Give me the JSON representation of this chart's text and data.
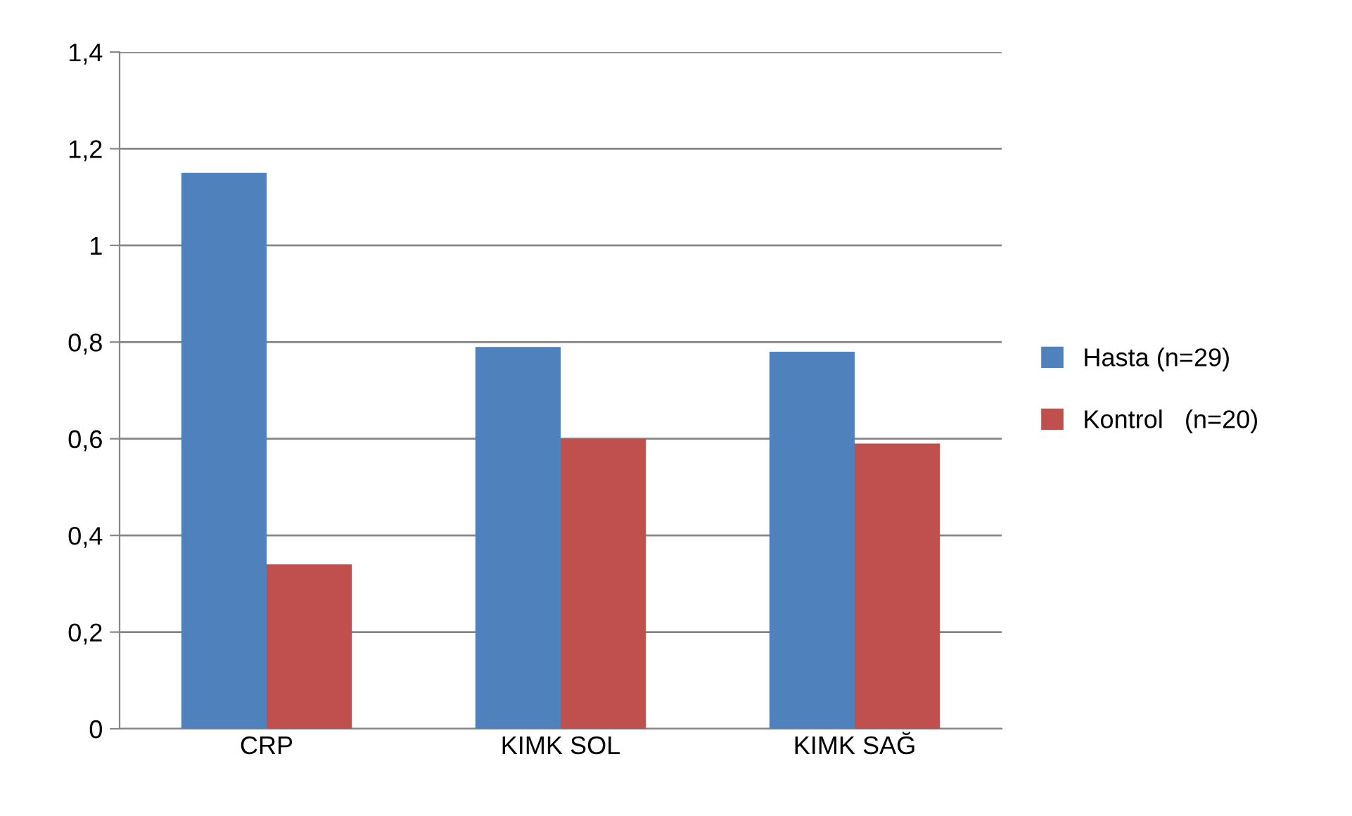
{
  "chart_data": {
    "type": "bar",
    "categories": [
      "CRP",
      "KIMK SOL",
      "KIMK SAĞ"
    ],
    "series": [
      {
        "name": "Hasta (n=29)",
        "color": "#4f81bd",
        "values": [
          1.15,
          0.79,
          0.78
        ]
      },
      {
        "name": "Kontrol   (n=20)",
        "color": "#c0504d",
        "values": [
          0.34,
          0.6,
          0.59
        ]
      }
    ],
    "ylim": [
      0,
      1.4
    ],
    "yticks": [
      {
        "value": 0,
        "label": "0"
      },
      {
        "value": 0.2,
        "label": "0,2"
      },
      {
        "value": 0.4,
        "label": "0,4"
      },
      {
        "value": 0.6,
        "label": "0,6"
      },
      {
        "value": 0.8,
        "label": "0,8"
      },
      {
        "value": 1,
        "label": "1"
      },
      {
        "value": 1.2,
        "label": "1,2"
      },
      {
        "value": 1.4,
        "label": "1,4"
      }
    ],
    "grid": "y",
    "legend": "right"
  }
}
